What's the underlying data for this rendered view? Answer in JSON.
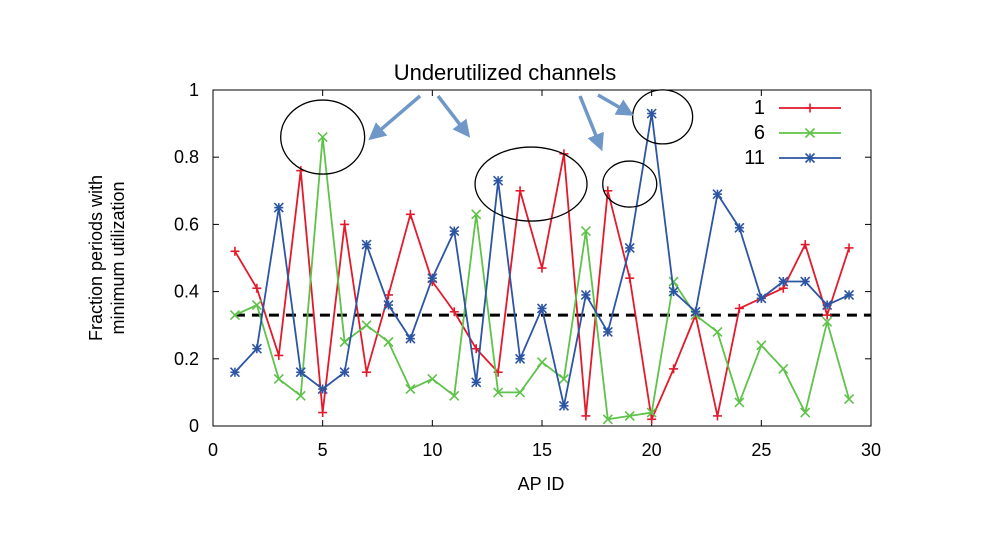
{
  "chart_data": {
    "type": "line",
    "title": "",
    "annotation": "Underutilized channels",
    "xlabel": "AP ID",
    "ylabel_lines": [
      "Fraction periods with",
      "minimum utilization"
    ],
    "xlim": [
      0,
      30
    ],
    "ylim": [
      0,
      1
    ],
    "xticks": [
      0,
      5,
      10,
      15,
      20,
      25,
      30
    ],
    "yticks": [
      0,
      0.2,
      0.4,
      0.6,
      0.8,
      1
    ],
    "grid": false,
    "legend_position": "top-right",
    "threshold": {
      "value": 0.33,
      "style": "dashed",
      "color": "#000000"
    },
    "x": [
      1,
      2,
      3,
      4,
      5,
      6,
      7,
      8,
      9,
      10,
      11,
      12,
      13,
      14,
      15,
      16,
      17,
      18,
      19,
      20,
      21,
      22,
      23,
      24,
      25,
      26,
      27,
      28,
      29,
      30
    ],
    "series": [
      {
        "name": "1",
        "color": "#e31a2b",
        "marker": "plus",
        "values": [
          0.52,
          0.41,
          0.21,
          0.76,
          0.04,
          0.6,
          0.16,
          0.39,
          0.63,
          0.43,
          0.34,
          0.23,
          0.16,
          0.7,
          0.47,
          0.81,
          0.03,
          0.7,
          0.44,
          0.02,
          0.17,
          0.33,
          0.03,
          0.35,
          0.38,
          0.41,
          0.54,
          0.33,
          0.53,
          null
        ]
      },
      {
        "name": "6",
        "color": "#5fc24a",
        "marker": "cross",
        "values": [
          0.33,
          0.36,
          0.14,
          0.09,
          0.86,
          0.25,
          0.3,
          0.25,
          0.11,
          0.14,
          0.09,
          0.63,
          0.1,
          0.1,
          0.19,
          0.14,
          0.58,
          0.02,
          0.03,
          0.04,
          0.43,
          0.33,
          0.28,
          0.07,
          0.24,
          0.17,
          0.04,
          0.31,
          0.08,
          null
        ]
      },
      {
        "name": "11",
        "color": "#2c55a3",
        "marker": "star",
        "values": [
          0.16,
          0.23,
          0.65,
          0.16,
          0.11,
          0.16,
          0.54,
          0.36,
          0.26,
          0.44,
          0.58,
          0.13,
          0.73,
          0.2,
          0.35,
          0.06,
          0.39,
          0.28,
          0.53,
          0.93,
          0.4,
          0.34,
          0.69,
          0.59,
          0.38,
          0.43,
          0.43,
          0.36,
          0.39,
          null
        ]
      }
    ],
    "highlighted_points": [
      {
        "x": 5,
        "y": 0.86
      },
      {
        "x": 14.5,
        "y": 0.72
      },
      {
        "x": 19,
        "y": 0.72
      },
      {
        "x": 20.5,
        "y": 0.92
      }
    ]
  }
}
